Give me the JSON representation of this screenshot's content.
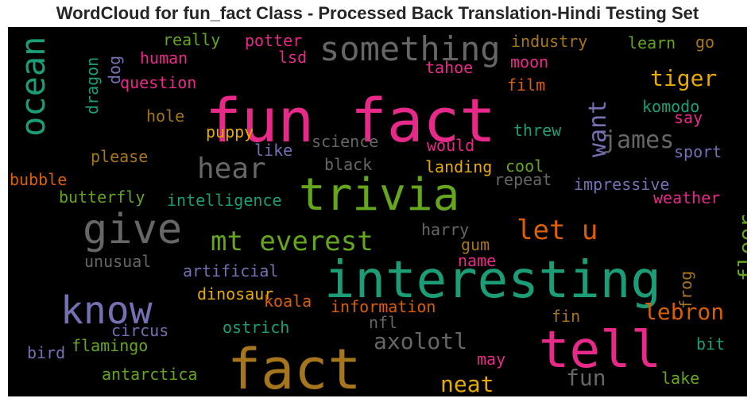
{
  "chart_data": {
    "type": "wordcloud",
    "title": "WordCloud for fun_fact Class - Processed Back Translation-Hindi Testing Set",
    "colors": {
      "background": "#000000",
      "green": "#1b9e77",
      "orange": "#d95f02",
      "purple": "#7570b3",
      "pink": "#e7298a",
      "lime": "#66a61e",
      "yellow": "#e6ab02",
      "brown": "#a6761d",
      "gray": "#666666"
    },
    "words": [
      {
        "text": "fun fact",
        "color": "#e7298a"
      },
      {
        "text": "interesting",
        "color": "#1b9e77"
      },
      {
        "text": "fact",
        "color": "#a6761d"
      },
      {
        "text": "trivia",
        "color": "#66a61e"
      },
      {
        "text": "tell",
        "color": "#e7298a"
      },
      {
        "text": "give",
        "color": "#666666"
      },
      {
        "text": "know",
        "color": "#7570b3"
      },
      {
        "text": "something",
        "color": "#666666"
      },
      {
        "text": "ocean",
        "color": "#1b9e77"
      },
      {
        "text": "mt everest",
        "color": "#66a61e"
      },
      {
        "text": "let u",
        "color": "#d95f02"
      },
      {
        "text": "hear",
        "color": "#666666"
      },
      {
        "text": "james",
        "color": "#666666"
      },
      {
        "text": "want",
        "color": "#7570b3"
      },
      {
        "text": "tiger",
        "color": "#e6ab02"
      },
      {
        "text": "lebron",
        "color": "#d95f02"
      },
      {
        "text": "axolotl",
        "color": "#666666"
      },
      {
        "text": "neat",
        "color": "#e6ab02"
      },
      {
        "text": "fun",
        "color": "#666666"
      },
      {
        "text": "floor",
        "color": "#66a61e"
      },
      {
        "text": "really",
        "color": "#66a61e"
      },
      {
        "text": "potter",
        "color": "#e7298a"
      },
      {
        "text": "industry",
        "color": "#a6761d"
      },
      {
        "text": "learn",
        "color": "#66a61e"
      },
      {
        "text": "go",
        "color": "#a6761d"
      },
      {
        "text": "human",
        "color": "#e7298a"
      },
      {
        "text": "lsd",
        "color": "#e7298a"
      },
      {
        "text": "moon",
        "color": "#e7298a"
      },
      {
        "text": "dog",
        "color": "#7570b3"
      },
      {
        "text": "dragon",
        "color": "#1b9e77"
      },
      {
        "text": "question",
        "color": "#e7298a"
      },
      {
        "text": "tahoe",
        "color": "#e7298a"
      },
      {
        "text": "film",
        "color": "#d95f02"
      },
      {
        "text": "komodo",
        "color": "#1b9e77"
      },
      {
        "text": "hole",
        "color": "#a6761d"
      },
      {
        "text": "say",
        "color": "#e7298a"
      },
      {
        "text": "threw",
        "color": "#1b9e77"
      },
      {
        "text": "puppy",
        "color": "#e6ab02"
      },
      {
        "text": "science",
        "color": "#666666"
      },
      {
        "text": "like",
        "color": "#7570b3"
      },
      {
        "text": "would",
        "color": "#e7298a"
      },
      {
        "text": "sport",
        "color": "#7570b3"
      },
      {
        "text": "please",
        "color": "#a6761d"
      },
      {
        "text": "black",
        "color": "#666666"
      },
      {
        "text": "landing",
        "color": "#e6ab02"
      },
      {
        "text": "cool",
        "color": "#66a61e"
      },
      {
        "text": "bubble",
        "color": "#d95f02"
      },
      {
        "text": "repeat",
        "color": "#666666"
      },
      {
        "text": "impressive",
        "color": "#7570b3"
      },
      {
        "text": "butterfly",
        "color": "#66a61e"
      },
      {
        "text": "intelligence",
        "color": "#1b9e77"
      },
      {
        "text": "weather",
        "color": "#e7298a"
      },
      {
        "text": "harry",
        "color": "#666666"
      },
      {
        "text": "gum",
        "color": "#a6761d"
      },
      {
        "text": "unusual",
        "color": "#666666"
      },
      {
        "text": "name",
        "color": "#e7298a"
      },
      {
        "text": "frog",
        "color": "#a6761d"
      },
      {
        "text": "artificial",
        "color": "#7570b3"
      },
      {
        "text": "dinosaur",
        "color": "#e6ab02"
      },
      {
        "text": "koala",
        "color": "#d95f02"
      },
      {
        "text": "information",
        "color": "#d95f02"
      },
      {
        "text": "circus",
        "color": "#7570b3"
      },
      {
        "text": "ostrich",
        "color": "#1b9e77"
      },
      {
        "text": "nfl",
        "color": "#666666"
      },
      {
        "text": "fin",
        "color": "#a6761d"
      },
      {
        "text": "bird",
        "color": "#7570b3"
      },
      {
        "text": "flamingo",
        "color": "#66a61e"
      },
      {
        "text": "bit",
        "color": "#1b9e77"
      },
      {
        "text": "may",
        "color": "#e7298a"
      },
      {
        "text": "antarctica",
        "color": "#66a61e"
      },
      {
        "text": "lake",
        "color": "#66a61e"
      }
    ]
  }
}
